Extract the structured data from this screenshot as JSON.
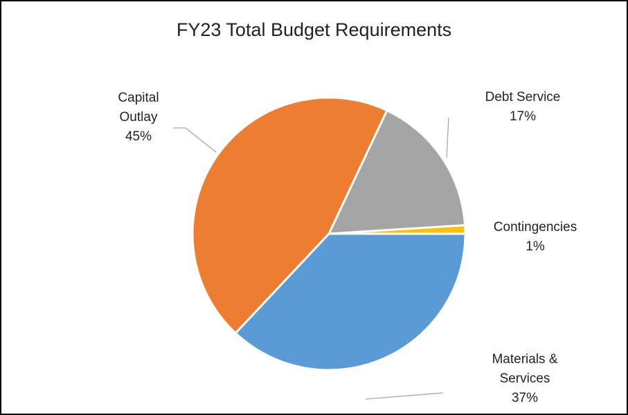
{
  "chart_data": {
    "type": "pie",
    "title": "FY23 Total Budget Requirements",
    "categories": [
      "Materials & Services",
      "Capital Outlay",
      "Debt Service",
      "Contingencies"
    ],
    "values": [
      37,
      45,
      17,
      1
    ],
    "value_labels": [
      "37%",
      "45%",
      "17%",
      "1%"
    ],
    "colors": [
      "#5b9bd5",
      "#ed7d31",
      "#a5a5a5",
      "#ffc000"
    ]
  }
}
